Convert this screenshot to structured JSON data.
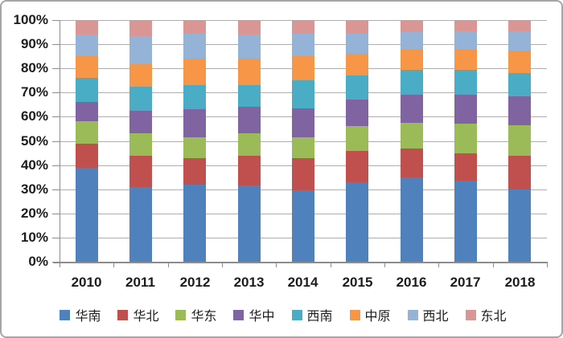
{
  "chart_data": {
    "type": "bar",
    "subtype": "stacked-100-percent",
    "title": "",
    "xlabel": "",
    "ylabel": "",
    "categories": [
      "2010",
      "2011",
      "2012",
      "2013",
      "2014",
      "2015",
      "2016",
      "2017",
      "2018"
    ],
    "series": [
      {
        "name": "华南",
        "color": "#4F81BD",
        "values": [
          39.0,
          31.0,
          32.0,
          31.5,
          29.5,
          33.0,
          35.0,
          33.5,
          30.0
        ]
      },
      {
        "name": "华北",
        "color": "#C0504D",
        "values": [
          10.0,
          13.0,
          11.0,
          12.5,
          13.5,
          13.0,
          12.0,
          11.5,
          14.0
        ]
      },
      {
        "name": "华东",
        "color": "#9BBB59",
        "values": [
          9.0,
          9.0,
          8.5,
          9.0,
          8.5,
          10.0,
          10.5,
          12.0,
          12.5
        ]
      },
      {
        "name": "华中",
        "color": "#8064A2",
        "values": [
          8.0,
          9.5,
          11.5,
          11.0,
          12.0,
          11.0,
          11.5,
          12.0,
          12.0
        ]
      },
      {
        "name": "西南",
        "color": "#4BACC6",
        "values": [
          10.0,
          10.0,
          10.0,
          9.0,
          11.5,
          10.0,
          10.5,
          10.5,
          9.5
        ]
      },
      {
        "name": "中原",
        "color": "#F79646",
        "values": [
          9.0,
          9.5,
          11.0,
          11.0,
          10.0,
          9.0,
          8.5,
          8.5,
          9.5
        ]
      },
      {
        "name": "西北",
        "color": "#95B3D7",
        "values": [
          9.0,
          11.5,
          10.5,
          10.0,
          9.5,
          8.5,
          7.0,
          7.5,
          8.0
        ]
      },
      {
        "name": "东北",
        "color": "#D99694",
        "values": [
          6.0,
          6.5,
          5.5,
          6.0,
          5.5,
          5.5,
          5.0,
          4.5,
          4.5
        ]
      }
    ],
    "y_ticks": [
      "0%",
      "10%",
      "20%",
      "30%",
      "40%",
      "50%",
      "60%",
      "70%",
      "80%",
      "90%",
      "100%"
    ],
    "ylim": [
      0,
      100
    ],
    "grid": true,
    "legend_position": "bottom",
    "style": {
      "grid_color": "#AEAEAE",
      "axis_color": "#8C8C8C",
      "text_color": "#1C1C1C",
      "border_color": "#A6A6A6",
      "background": "#FFFFFF"
    }
  }
}
